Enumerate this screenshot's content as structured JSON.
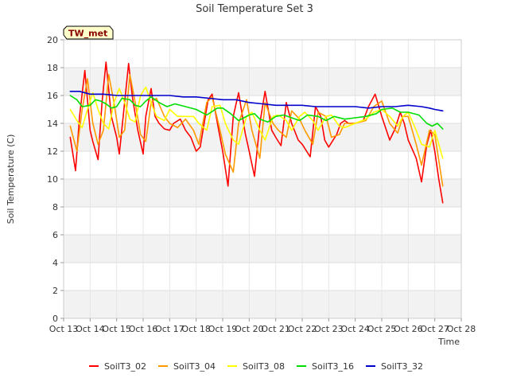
{
  "chart_data": {
    "type": "line",
    "title": "Soil Temperature Set 3",
    "xlabel": "Time",
    "ylabel": "Soil Temperature (C)",
    "annotation": "TW_met",
    "xlim": [
      13,
      28
    ],
    "ylim": [
      0,
      20
    ],
    "x_ticks": [
      {
        "value": 13,
        "label": "Oct 13"
      },
      {
        "value": 14,
        "label": "Oct 14"
      },
      {
        "value": 15,
        "label": "Oct 15"
      },
      {
        "value": 16,
        "label": "Oct 16"
      },
      {
        "value": 17,
        "label": "Oct 17"
      },
      {
        "value": 18,
        "label": "Oct 18"
      },
      {
        "value": 19,
        "label": "Oct 19"
      },
      {
        "value": 20,
        "label": "Oct 20"
      },
      {
        "value": 21,
        "label": "Oct 21"
      },
      {
        "value": 22,
        "label": "Oct 22"
      },
      {
        "value": 23,
        "label": "Oct 23"
      },
      {
        "value": 24,
        "label": "Oct 24"
      },
      {
        "value": 25,
        "label": "Oct 25"
      },
      {
        "value": 26,
        "label": "Oct 26"
      },
      {
        "value": 27,
        "label": "Oct 27"
      },
      {
        "value": 28,
        "label": "Oct 28"
      }
    ],
    "y_ticks": [
      0,
      2,
      4,
      6,
      8,
      10,
      12,
      14,
      16,
      18,
      20
    ],
    "grid": true,
    "background_bands": true,
    "legend_position": "bottom",
    "series": [
      {
        "name": "SoilT3_02",
        "color": "#ff0000",
        "x": [
          13.25,
          13.45,
          13.6,
          13.8,
          14.0,
          14.1,
          14.3,
          14.45,
          14.6,
          14.8,
          15.0,
          15.1,
          15.3,
          15.45,
          15.6,
          15.8,
          16.0,
          16.1,
          16.3,
          16.45,
          16.6,
          16.8,
          17.0,
          17.15,
          17.4,
          17.6,
          17.8,
          18.0,
          18.15,
          18.45,
          18.6,
          18.85,
          19.0,
          19.2,
          19.4,
          19.6,
          19.85,
          20.0,
          20.2,
          20.4,
          20.6,
          20.85,
          21.0,
          21.2,
          21.4,
          21.6,
          21.85,
          22.0,
          22.3,
          22.5,
          22.7,
          22.85,
          23.0,
          23.3,
          23.45,
          23.6,
          23.75,
          24.0,
          24.3,
          24.5,
          24.75,
          25.0,
          25.3,
          25.5,
          25.7,
          25.85,
          26.0,
          26.3,
          26.5,
          26.7,
          26.85,
          27.0,
          27.15,
          27.3
        ],
        "y": [
          13.0,
          10.6,
          14.5,
          17.8,
          13.5,
          12.7,
          11.4,
          15.5,
          18.4,
          14.5,
          13.0,
          11.8,
          15.5,
          18.3,
          15.8,
          13.5,
          11.8,
          14.5,
          16.5,
          14.5,
          14.0,
          13.6,
          13.5,
          14.0,
          14.3,
          13.5,
          13.0,
          12.0,
          12.3,
          15.7,
          16.1,
          13.5,
          12.0,
          9.5,
          14.5,
          16.2,
          13.3,
          12.0,
          10.2,
          14.0,
          16.3,
          13.5,
          13.0,
          12.4,
          15.5,
          14.0,
          12.8,
          12.5,
          11.6,
          15.2,
          14.5,
          12.8,
          12.3,
          13.2,
          14.0,
          14.2,
          14.0,
          14.0,
          14.2,
          15.2,
          16.1,
          14.5,
          12.8,
          13.6,
          14.8,
          14.0,
          12.8,
          11.5,
          9.8,
          12.5,
          13.5,
          12.0,
          10.0,
          8.3
        ]
      },
      {
        "name": "SoilT3_04",
        "color": "#ff9900",
        "x": [
          13.25,
          13.5,
          13.7,
          13.9,
          14.1,
          14.3,
          14.5,
          14.7,
          14.9,
          15.1,
          15.3,
          15.5,
          15.7,
          15.9,
          16.1,
          16.3,
          16.5,
          16.8,
          17.0,
          17.3,
          17.6,
          17.9,
          18.1,
          18.4,
          18.6,
          18.9,
          19.1,
          19.4,
          19.6,
          19.9,
          20.1,
          20.4,
          20.6,
          20.9,
          21.1,
          21.4,
          21.6,
          21.9,
          22.1,
          22.4,
          22.6,
          22.9,
          23.1,
          23.4,
          23.6,
          24.0,
          24.4,
          24.7,
          25.0,
          25.3,
          25.6,
          25.8,
          26.0,
          26.3,
          26.5,
          26.8,
          27.0,
          27.3
        ],
        "y": [
          13.8,
          12.0,
          15.0,
          17.2,
          14.0,
          12.5,
          13.5,
          17.5,
          15.5,
          13.0,
          13.5,
          17.5,
          15.5,
          13.2,
          12.7,
          15.5,
          15.8,
          14.5,
          14.0,
          13.7,
          14.3,
          13.5,
          12.5,
          15.5,
          15.9,
          13.5,
          11.8,
          10.5,
          14.0,
          15.7,
          13.5,
          11.5,
          15.5,
          14.0,
          13.5,
          13.0,
          14.9,
          14.3,
          13.5,
          12.5,
          14.8,
          14.5,
          13.0,
          13.2,
          14.0,
          14.0,
          14.2,
          15.2,
          15.6,
          14.0,
          13.3,
          14.5,
          14.5,
          12.5,
          11.0,
          13.5,
          13.2,
          9.5
        ]
      },
      {
        "name": "SoilT3_08",
        "color": "#ffff00",
        "x": [
          13.25,
          13.5,
          13.7,
          13.9,
          14.1,
          14.3,
          14.5,
          14.7,
          14.9,
          15.1,
          15.3,
          15.5,
          15.7,
          15.9,
          16.1,
          16.3,
          16.5,
          16.8,
          17.0,
          17.3,
          17.6,
          17.9,
          18.1,
          18.4,
          18.6,
          18.9,
          19.1,
          19.4,
          19.6,
          19.9,
          20.1,
          20.4,
          20.6,
          20.9,
          21.1,
          21.4,
          21.6,
          21.9,
          22.1,
          22.4,
          22.6,
          22.9,
          23.1,
          23.4,
          23.6,
          24.0,
          24.4,
          24.7,
          25.0,
          25.3,
          25.6,
          25.8,
          26.0,
          26.3,
          26.5,
          26.8,
          27.0,
          27.3
        ],
        "y": [
          15.0,
          14.2,
          13.7,
          15.0,
          16.2,
          15.0,
          14.0,
          13.6,
          15.5,
          16.5,
          15.5,
          14.3,
          14.1,
          16.0,
          16.6,
          15.5,
          14.5,
          14.2,
          15.0,
          14.5,
          14.5,
          14.5,
          14.0,
          13.5,
          15.2,
          15.3,
          14.0,
          12.8,
          12.5,
          14.5,
          14.8,
          13.5,
          12.8,
          14.5,
          14.6,
          14.2,
          13.5,
          14.5,
          14.8,
          14.2,
          13.5,
          14.5,
          14.6,
          13.8,
          13.7,
          14.0,
          14.3,
          14.8,
          15.0,
          14.5,
          13.8,
          14.5,
          14.8,
          13.5,
          12.5,
          12.3,
          13.5,
          11.5
        ]
      },
      {
        "name": "SoilT3_16",
        "color": "#00dd00",
        "x": [
          13.25,
          13.5,
          13.7,
          14.0,
          14.2,
          14.4,
          14.6,
          14.8,
          15.0,
          15.2,
          15.5,
          15.7,
          15.9,
          16.1,
          16.3,
          16.6,
          16.9,
          17.2,
          17.6,
          18.0,
          18.4,
          18.8,
          19.0,
          19.3,
          19.6,
          20.0,
          20.2,
          20.4,
          20.7,
          21.0,
          21.3,
          21.6,
          21.9,
          22.2,
          22.6,
          22.9,
          23.2,
          23.6,
          24.0,
          24.4,
          24.8,
          25.0,
          25.4,
          25.7,
          26.0,
          26.4,
          26.7,
          26.9,
          27.1,
          27.3
        ],
        "y": [
          16.0,
          15.7,
          15.2,
          15.3,
          15.7,
          15.6,
          15.4,
          15.1,
          15.2,
          15.8,
          15.7,
          15.3,
          15.2,
          15.6,
          15.9,
          15.5,
          15.2,
          15.4,
          15.2,
          15.0,
          14.6,
          15.1,
          15.1,
          14.7,
          14.2,
          14.6,
          14.7,
          14.3,
          14.1,
          14.5,
          14.6,
          14.4,
          14.2,
          14.6,
          14.5,
          14.2,
          14.5,
          14.3,
          14.4,
          14.5,
          14.7,
          15.0,
          15.1,
          14.8,
          14.8,
          14.6,
          14.0,
          13.8,
          14.0,
          13.6
        ]
      },
      {
        "name": "SoilT3_32",
        "color": "#0000cc",
        "x": [
          13.25,
          13.6,
          14.0,
          14.5,
          15.0,
          15.5,
          16.0,
          16.5,
          17.0,
          17.5,
          18.0,
          18.5,
          19.0,
          19.5,
          20.0,
          20.5,
          21.0,
          21.5,
          22.0,
          22.5,
          23.0,
          23.5,
          24.0,
          24.5,
          25.0,
          25.5,
          26.0,
          26.5,
          26.8,
          27.0,
          27.3
        ],
        "y": [
          16.3,
          16.3,
          16.1,
          16.1,
          16.0,
          16.0,
          16.0,
          16.0,
          16.0,
          15.9,
          15.9,
          15.8,
          15.7,
          15.7,
          15.5,
          15.4,
          15.3,
          15.3,
          15.3,
          15.2,
          15.2,
          15.2,
          15.2,
          15.1,
          15.2,
          15.2,
          15.3,
          15.2,
          15.1,
          15.0,
          14.9
        ]
      }
    ]
  }
}
